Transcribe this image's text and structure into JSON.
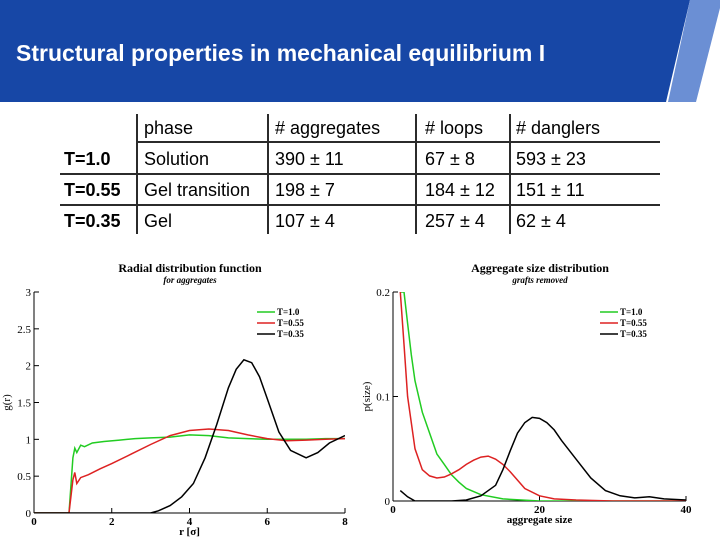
{
  "slide": {
    "title": "Structural properties in mechanical equilibrium I",
    "colors": {
      "header": "#1747a6",
      "header_stripe": "#6b8fd4"
    }
  },
  "table": {
    "headers": [
      "phase",
      "# aggregates",
      "# loops",
      "# danglers"
    ],
    "rows": [
      {
        "label": "T=1.0",
        "cells": [
          "Solution",
          "390 ± 11",
          "67 ± 8",
          "593 ± 23"
        ]
      },
      {
        "label": "T=0.55",
        "cells": [
          "Gel transition",
          "198 ± 7",
          "184 ± 12",
          "151 ± 11"
        ]
      },
      {
        "label": "T=0.35",
        "cells": [
          "Gel",
          "107 ± 4",
          "257 ± 4",
          "62 ± 4"
        ]
      }
    ]
  },
  "chart_data": [
    {
      "type": "line",
      "title": "Radial distribution function",
      "subtitle": "for aggregates",
      "xlabel": "r [σ]",
      "ylabel": "g(r)",
      "xlim": [
        0,
        8
      ],
      "ylim": [
        0,
        3
      ],
      "xticks": [
        "0",
        "2",
        "4",
        "6",
        "8"
      ],
      "yticks": [
        "0",
        "0.5",
        "1",
        "1.5",
        "2",
        "2.5",
        "3"
      ],
      "legend": "top-right",
      "series": [
        {
          "name": "T=1.0",
          "color": "#22cc22",
          "x": [
            0.0,
            0.9,
            1.0,
            1.05,
            1.1,
            1.2,
            1.3,
            1.5,
            1.8,
            2.2,
            2.6,
            3.0,
            3.5,
            4.0,
            4.5,
            5.0,
            5.5,
            6.0,
            6.5,
            7.0,
            7.5,
            8.0
          ],
          "y": [
            0.0,
            0.0,
            0.75,
            0.88,
            0.82,
            0.92,
            0.9,
            0.95,
            0.97,
            0.99,
            1.01,
            1.02,
            1.03,
            1.06,
            1.05,
            1.02,
            1.01,
            1.0,
            1.0,
            1.0,
            1.01,
            1.01
          ]
        },
        {
          "name": "T=0.55",
          "color": "#dd2222",
          "x": [
            0.0,
            0.9,
            1.0,
            1.05,
            1.1,
            1.2,
            1.4,
            1.7,
            2.0,
            2.5,
            3.0,
            3.5,
            4.0,
            4.5,
            5.0,
            5.5,
            6.0,
            6.5,
            7.0,
            7.5,
            8.0
          ],
          "y": [
            0.0,
            0.0,
            0.45,
            0.55,
            0.4,
            0.48,
            0.52,
            0.6,
            0.67,
            0.8,
            0.93,
            1.05,
            1.12,
            1.14,
            1.12,
            1.06,
            1.01,
            0.98,
            0.99,
            1.0,
            1.01
          ]
        },
        {
          "name": "T=0.35",
          "color": "#000000",
          "x": [
            0.0,
            3.0,
            3.2,
            3.5,
            3.8,
            4.1,
            4.4,
            4.7,
            5.0,
            5.2,
            5.4,
            5.6,
            5.8,
            6.0,
            6.3,
            6.6,
            7.0,
            7.3,
            7.6,
            8.0
          ],
          "y": [
            0.0,
            0.0,
            0.03,
            0.1,
            0.22,
            0.4,
            0.75,
            1.2,
            1.7,
            1.95,
            2.08,
            2.04,
            1.85,
            1.55,
            1.1,
            0.85,
            0.75,
            0.82,
            0.95,
            1.05
          ]
        }
      ]
    },
    {
      "type": "line",
      "title": "Aggregate size distribution",
      "subtitle": "grafts removed",
      "xlabel": "aggregate size",
      "ylabel": "p(size)",
      "xlim": [
        0,
        40
      ],
      "ylim": [
        0,
        0.2
      ],
      "xticks": [
        "0",
        "20",
        "40"
      ],
      "yticks": [
        "0",
        "0.1",
        "0.2"
      ],
      "legend": "top-right",
      "series": [
        {
          "name": "T=1.0",
          "color": "#22cc22",
          "x": [
            1,
            1.5,
            2,
            2.5,
            3,
            4,
            5,
            6,
            7,
            8,
            9,
            10,
            12,
            15,
            20,
            25,
            30,
            35,
            40
          ],
          "y": [
            0.2,
            0.2,
            0.17,
            0.14,
            0.115,
            0.085,
            0.065,
            0.045,
            0.035,
            0.025,
            0.018,
            0.012,
            0.006,
            0.002,
            0.0,
            0.0,
            0.0,
            0.0,
            0.0
          ]
        },
        {
          "name": "T=0.55",
          "color": "#dd2222",
          "x": [
            1,
            1.5,
            2,
            3,
            4,
            5,
            6,
            7,
            8,
            9,
            10,
            11,
            12,
            13,
            14,
            15,
            16,
            17,
            18,
            20,
            22,
            25,
            30,
            35,
            40
          ],
          "y": [
            0.2,
            0.15,
            0.1,
            0.05,
            0.03,
            0.024,
            0.022,
            0.023,
            0.026,
            0.03,
            0.035,
            0.039,
            0.042,
            0.043,
            0.04,
            0.035,
            0.028,
            0.02,
            0.012,
            0.005,
            0.002,
            0.001,
            0.0,
            0.0,
            0.0
          ]
        },
        {
          "name": "T=0.35",
          "color": "#000000",
          "x": [
            1,
            2,
            3,
            5,
            8,
            10,
            12,
            14,
            15,
            16,
            17,
            18,
            19,
            20,
            21,
            22,
            23,
            25,
            27,
            29,
            31,
            33,
            35,
            37,
            40
          ],
          "y": [
            0.01,
            0.004,
            0.0,
            0.0,
            0.0,
            0.001,
            0.005,
            0.015,
            0.03,
            0.048,
            0.065,
            0.075,
            0.08,
            0.079,
            0.075,
            0.068,
            0.058,
            0.04,
            0.022,
            0.01,
            0.005,
            0.003,
            0.004,
            0.002,
            0.001
          ]
        }
      ]
    }
  ]
}
